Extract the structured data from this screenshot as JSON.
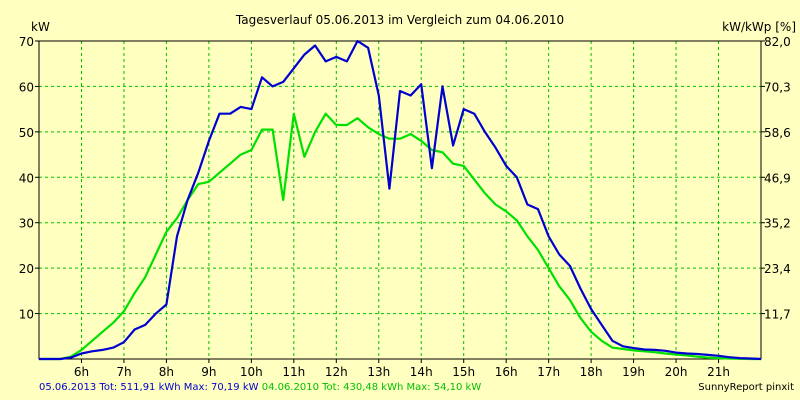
{
  "chart_data": {
    "type": "line",
    "title": "Tagesverlauf 05.06.2013 im Vergleich zum 04.06.2010",
    "ylabel_left": "kW",
    "ylabel_right": "kW/kWp [%]",
    "ylim": [
      0,
      70
    ],
    "y_ticks": [
      "10",
      "20",
      "30",
      "40",
      "50",
      "60",
      "70"
    ],
    "y_right_ticks": [
      "11,7",
      "23,4",
      "35,2",
      "46,9",
      "58,6",
      "70,3",
      "82,0"
    ],
    "xlim": [
      5.0,
      22.0
    ],
    "x_ticks": [
      "6h",
      "7h",
      "8h",
      "9h",
      "10h",
      "11h",
      "12h",
      "13h",
      "14h",
      "15h",
      "16h",
      "17h",
      "18h",
      "19h",
      "20h",
      "21h"
    ],
    "grid": true,
    "colors": {
      "series_2013": "#0000d0",
      "series_2010": "#00e000",
      "grid": "#00c000",
      "background": "#ffffc0"
    },
    "series": [
      {
        "name": "05.06.2013",
        "color": "#0000d0",
        "x": [
          5.0,
          5.5,
          5.75,
          6.0,
          6.25,
          6.5,
          6.75,
          7.0,
          7.25,
          7.5,
          7.75,
          8.0,
          8.25,
          8.5,
          8.75,
          9.0,
          9.25,
          9.5,
          9.75,
          10.0,
          10.25,
          10.5,
          10.75,
          11.0,
          11.25,
          11.5,
          11.75,
          12.0,
          12.25,
          12.5,
          12.75,
          13.0,
          13.25,
          13.5,
          13.75,
          14.0,
          14.25,
          14.5,
          14.75,
          15.0,
          15.25,
          15.5,
          15.75,
          16.0,
          16.25,
          16.5,
          16.75,
          17.0,
          17.25,
          17.5,
          17.75,
          18.0,
          18.25,
          18.5,
          18.75,
          19.0,
          19.25,
          19.5,
          19.75,
          20.0,
          20.25,
          20.5,
          20.75,
          21.0,
          21.25,
          21.5,
          21.75,
          22.0
        ],
        "values": [
          0,
          0,
          0.3,
          1.2,
          1.7,
          2.0,
          2.5,
          3.7,
          6.5,
          7.5,
          10,
          12,
          27,
          35,
          41,
          48,
          54,
          54,
          55.5,
          55,
          62,
          60,
          61,
          64,
          67,
          69,
          65.5,
          66.5,
          65.5,
          70,
          68.5,
          58,
          37.5,
          59,
          58,
          60.5,
          42,
          60,
          47,
          55,
          54,
          50,
          46.5,
          42.5,
          40,
          34,
          33,
          27,
          23,
          20.5,
          15.5,
          11,
          7.5,
          4,
          2.8,
          2.4,
          2.1,
          2.0,
          1.8,
          1.4,
          1.2,
          1.1,
          0.9,
          0.7,
          0.4,
          0.2,
          0.1,
          0
        ]
      },
      {
        "name": "04.06.2010",
        "color": "#00e000",
        "x": [
          5.0,
          5.5,
          5.75,
          6.0,
          6.25,
          6.5,
          6.75,
          7.0,
          7.25,
          7.5,
          7.75,
          8.0,
          8.25,
          8.5,
          8.75,
          9.0,
          9.25,
          9.5,
          9.75,
          10.0,
          10.25,
          10.5,
          10.75,
          11.0,
          11.25,
          11.5,
          11.75,
          12.0,
          12.25,
          12.5,
          12.75,
          13.0,
          13.25,
          13.5,
          13.75,
          14.0,
          14.25,
          14.5,
          14.75,
          15.0,
          15.25,
          15.5,
          15.75,
          16.0,
          16.25,
          16.5,
          16.75,
          17.0,
          17.25,
          17.5,
          17.75,
          18.0,
          18.25,
          18.5,
          18.75,
          19.0,
          19.25,
          19.5,
          19.75,
          20.0,
          20.25,
          20.5,
          20.75,
          21.0,
          21.25,
          21.5,
          21.75,
          22.0
        ],
        "values": [
          0,
          0,
          0.5,
          2.0,
          4.0,
          6.0,
          8.0,
          10.5,
          14.5,
          18,
          23,
          28,
          31,
          35,
          38.5,
          39,
          41,
          43,
          45,
          46,
          50.5,
          50.5,
          35,
          54,
          44.5,
          50,
          54,
          51.5,
          51.5,
          53,
          51,
          49.5,
          48.5,
          48.5,
          49.5,
          48,
          46,
          45.5,
          43,
          42.5,
          39.5,
          36.5,
          34,
          32.5,
          30.5,
          27,
          24,
          20,
          16,
          13,
          9,
          6,
          4,
          2.5,
          2.2,
          1.9,
          1.7,
          1.5,
          1.2,
          1.0,
          0.8,
          0.5,
          0.3,
          0.2,
          0.1,
          0.05,
          0,
          0
        ]
      }
    ],
    "footer": {
      "text_2013": "05.06.2013 Tot: 511,91 kWh Max: 70,19 kW",
      "text_2010": "04.06.2010 Tot: 430,48 kWh Max: 54,10 kW"
    },
    "credit": "SunnyReport pinxit"
  }
}
